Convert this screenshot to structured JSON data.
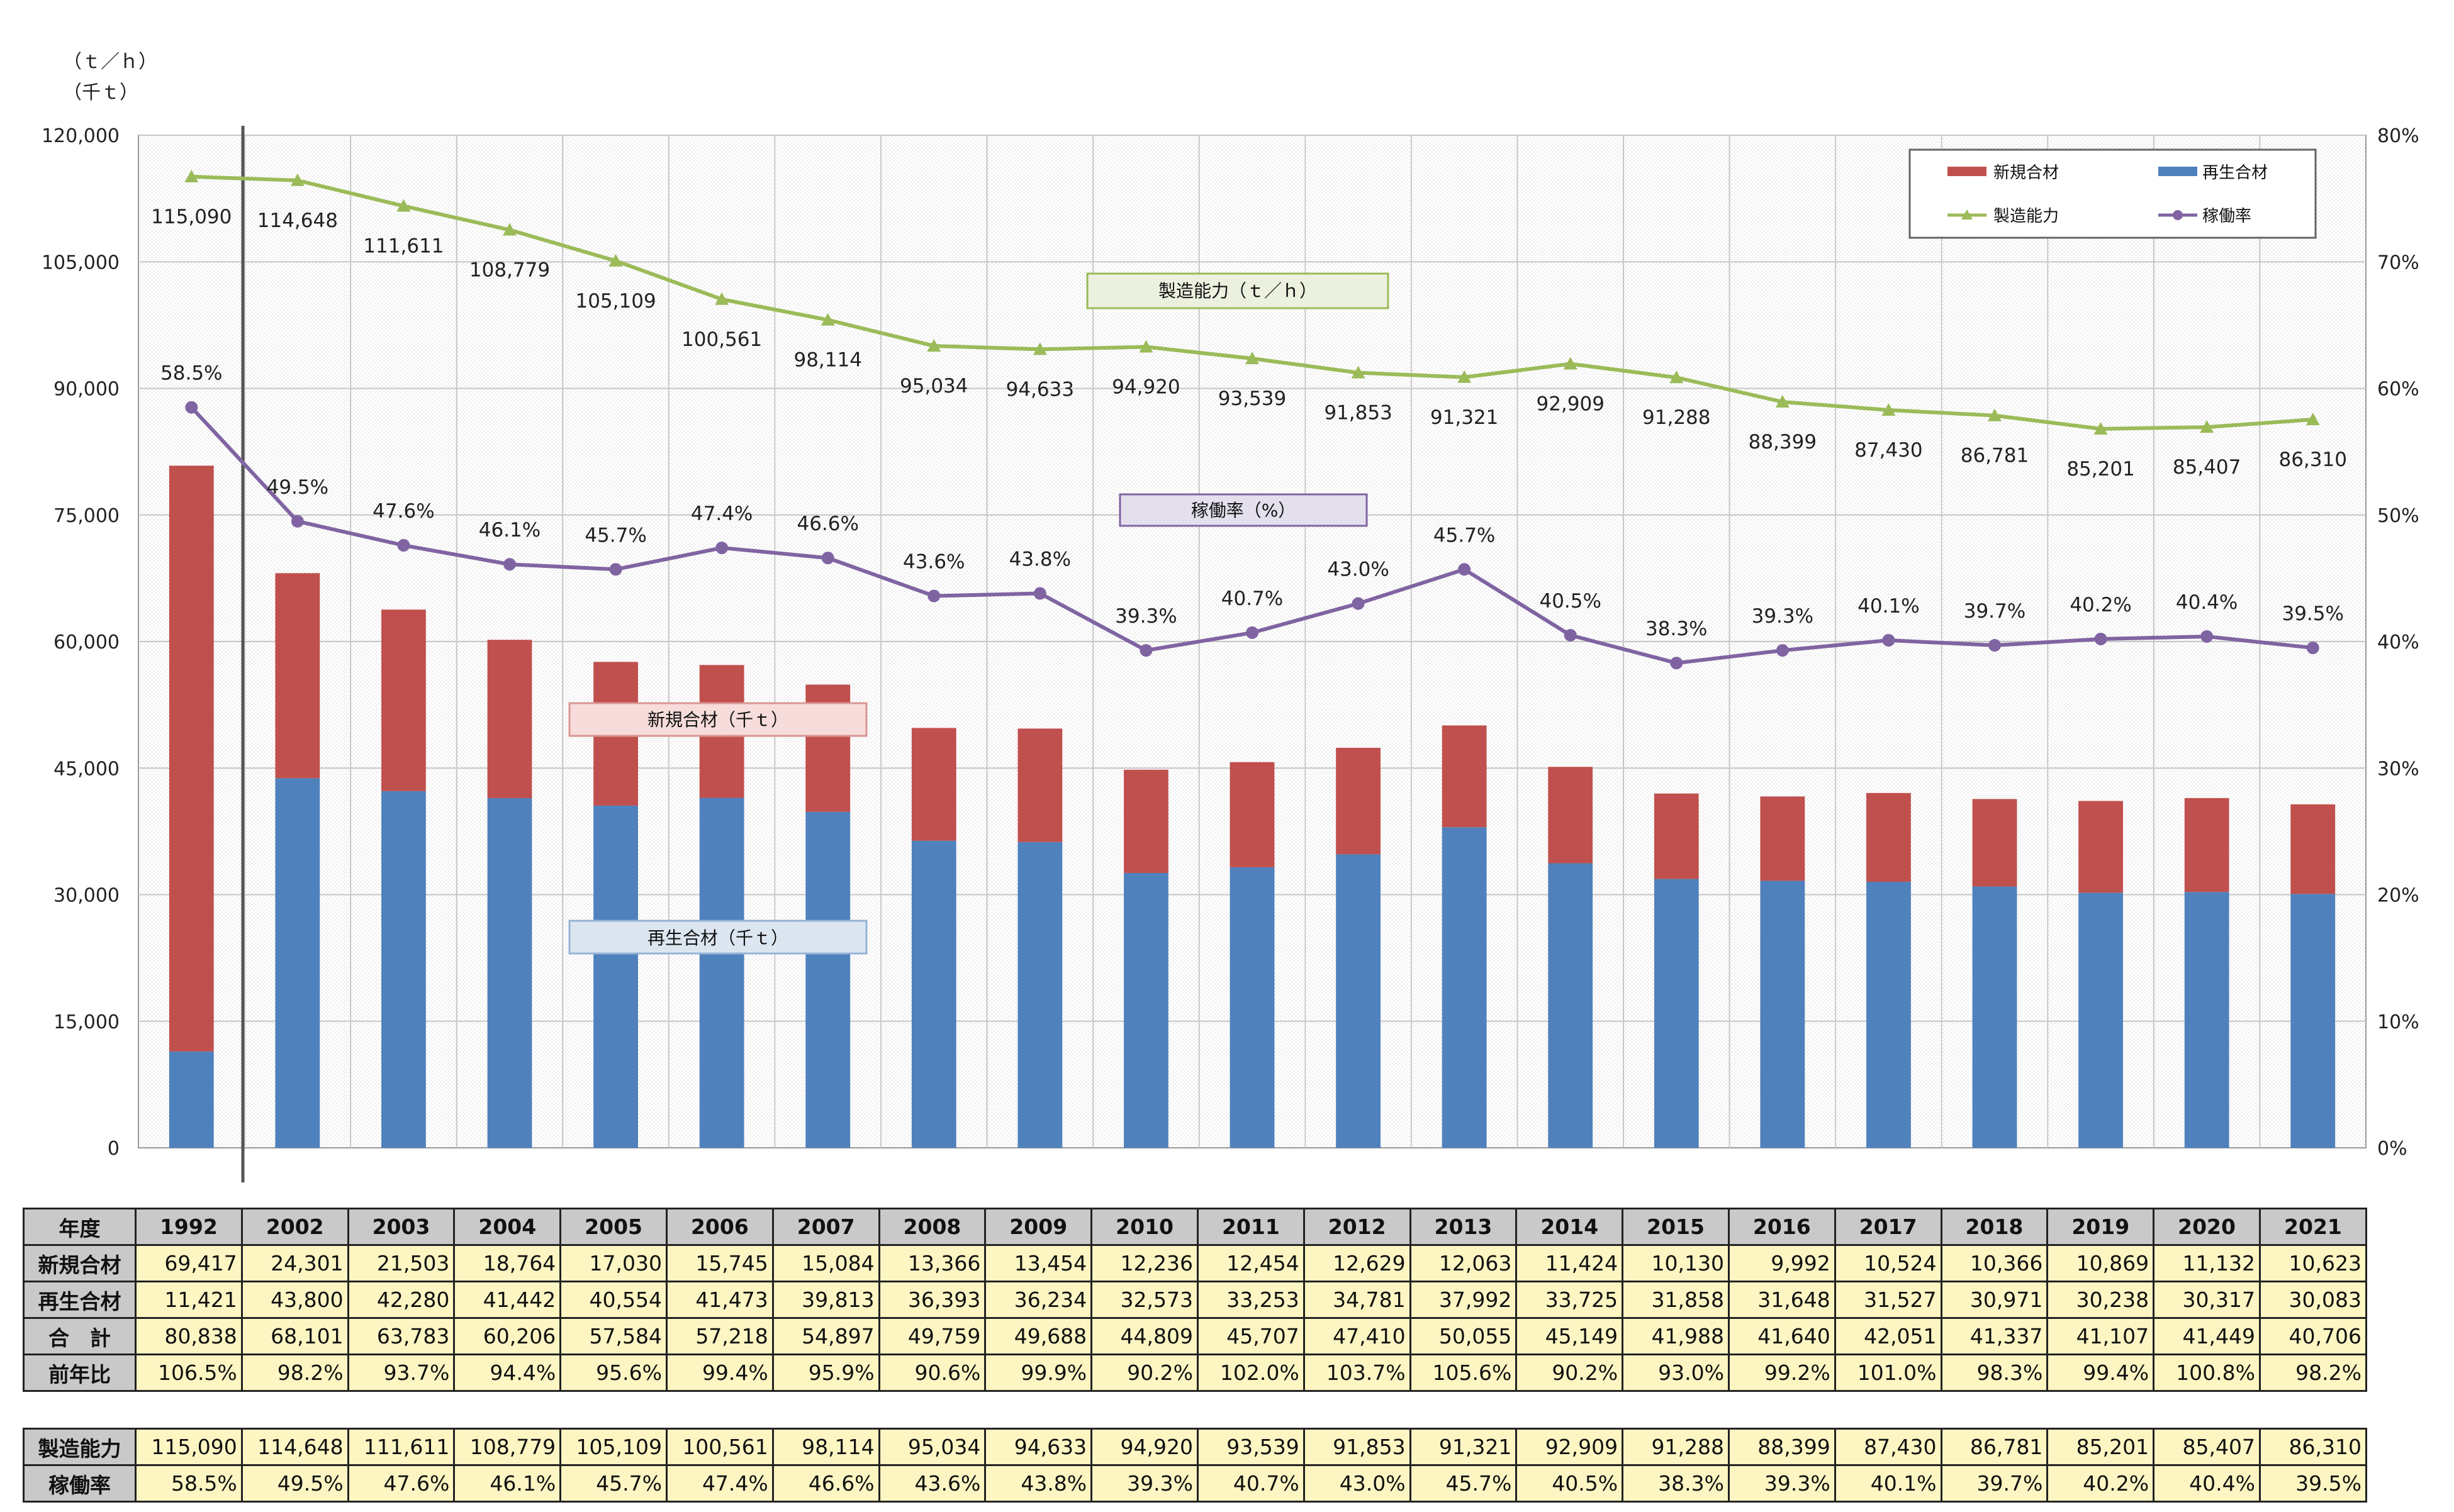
{
  "chart_data": {
    "type": "bar+line",
    "unit_labels": [
      "（ｔ／ｈ）",
      "（千ｔ）"
    ],
    "categories": [
      "1992",
      "2002",
      "2003",
      "2004",
      "2005",
      "2006",
      "2007",
      "2008",
      "2009",
      "2010",
      "2011",
      "2012",
      "2013",
      "2014",
      "2015",
      "2016",
      "2017",
      "2018",
      "2019",
      "2020",
      "2021"
    ],
    "y_left": {
      "min": 0,
      "max": 120000,
      "ticks": [
        "0",
        "15,000",
        "30,000",
        "45,000",
        "60,000",
        "75,000",
        "90,000",
        "105,000",
        "120,000"
      ]
    },
    "y_right": {
      "min": 0,
      "max": 80,
      "ticks": [
        "0%",
        "10%",
        "20%",
        "30%",
        "40%",
        "50%",
        "60%",
        "70%",
        "80%"
      ]
    },
    "series": [
      {
        "name": "新規合材",
        "type": "bar",
        "color": "#c0504d",
        "values": [
          69417,
          24301,
          21503,
          18764,
          17030,
          15745,
          15084,
          13366,
          13454,
          12236,
          12454,
          12629,
          12063,
          11424,
          10130,
          9992,
          10524,
          10366,
          10869,
          11132,
          10623
        ]
      },
      {
        "name": "再生合材",
        "type": "bar",
        "color": "#4f81bd",
        "values": [
          11421,
          43800,
          42280,
          41442,
          40554,
          41473,
          39813,
          36393,
          36234,
          32573,
          33253,
          34781,
          37992,
          33725,
          31858,
          31648,
          31527,
          30971,
          30238,
          30317,
          30083
        ]
      },
      {
        "name": "製造能力",
        "type": "line",
        "axis": "left",
        "color": "#9bbb59",
        "values": [
          115090,
          114648,
          111611,
          108779,
          105109,
          100561,
          98114,
          95034,
          94633,
          94920,
          93539,
          91853,
          91321,
          92909,
          91288,
          88399,
          87430,
          86781,
          85201,
          85407,
          86310
        ],
        "labels": [
          "115,090",
          "114,648",
          "111,611",
          "108,779",
          "105,109",
          "100,561",
          "98,114",
          "95,034",
          "94,633",
          "94,920",
          "93,539",
          "91,853",
          "91,321",
          "92,909",
          "91,288",
          "88,399",
          "87,430",
          "86,781",
          "85,201",
          "85,407",
          "86,310"
        ]
      },
      {
        "name": "稼働率",
        "type": "line",
        "axis": "right",
        "color": "#8064a2",
        "values": [
          58.5,
          49.5,
          47.6,
          46.1,
          45.7,
          47.4,
          46.6,
          43.6,
          43.8,
          39.3,
          40.7,
          43.0,
          45.7,
          40.5,
          38.3,
          39.3,
          40.1,
          39.7,
          40.2,
          40.4,
          39.5
        ],
        "labels": [
          "58.5%",
          "49.5%",
          "47.6%",
          "46.1%",
          "45.7%",
          "47.4%",
          "46.6%",
          "43.6%",
          "43.8%",
          "39.3%",
          "40.7%",
          "43.0%",
          "45.7%",
          "40.5%",
          "38.3%",
          "39.3%",
          "40.1%",
          "39.7%",
          "40.2%",
          "40.4%",
          "39.5%"
        ]
      }
    ],
    "legend": {
      "position": "top-right",
      "items": [
        {
          "label": "新規合材",
          "color": "#c0504d",
          "kind": "bar"
        },
        {
          "label": "再生合材",
          "color": "#4f81bd",
          "kind": "bar"
        },
        {
          "label": "製造能力",
          "color": "#9bbb59",
          "kind": "line"
        },
        {
          "label": "稼働率",
          "color": "#8064a2",
          "kind": "line"
        }
      ]
    },
    "annotations": {
      "capacity": "製造能力（ｔ／ｈ）",
      "rate": "稼働率（%）",
      "new_mix": "新規合材（千ｔ）",
      "recycled_mix": "再生合材（千ｔ）"
    },
    "grid": true
  },
  "table": {
    "header_label": "年度",
    "years": [
      "1992",
      "2002",
      "2003",
      "2004",
      "2005",
      "2006",
      "2007",
      "2008",
      "2009",
      "2010",
      "2011",
      "2012",
      "2013",
      "2014",
      "2015",
      "2016",
      "2017",
      "2018",
      "2019",
      "2020",
      "2021"
    ],
    "rows": [
      {
        "label": "新規合材",
        "values": [
          "69,417",
          "24,301",
          "21,503",
          "18,764",
          "17,030",
          "15,745",
          "15,084",
          "13,366",
          "13,454",
          "12,236",
          "12,454",
          "12,629",
          "12,063",
          "11,424",
          "10,130",
          "9,992",
          "10,524",
          "10,366",
          "10,869",
          "11,132",
          "10,623"
        ]
      },
      {
        "label": "再生合材",
        "values": [
          "11,421",
          "43,800",
          "42,280",
          "41,442",
          "40,554",
          "41,473",
          "39,813",
          "36,393",
          "36,234",
          "32,573",
          "33,253",
          "34,781",
          "37,992",
          "33,725",
          "31,858",
          "31,648",
          "31,527",
          "30,971",
          "30,238",
          "30,317",
          "30,083"
        ]
      },
      {
        "label": "合　計",
        "values": [
          "80,838",
          "68,101",
          "63,783",
          "60,206",
          "57,584",
          "57,218",
          "54,897",
          "49,759",
          "49,688",
          "44,809",
          "45,707",
          "47,410",
          "50,055",
          "45,149",
          "41,988",
          "41,640",
          "42,051",
          "41,337",
          "41,107",
          "41,449",
          "40,706"
        ]
      },
      {
        "label": "前年比",
        "values": [
          "106.5%",
          "98.2%",
          "93.7%",
          "94.4%",
          "95.6%",
          "99.4%",
          "95.9%",
          "90.6%",
          "99.9%",
          "90.2%",
          "102.0%",
          "103.7%",
          "105.6%",
          "90.2%",
          "93.0%",
          "99.2%",
          "101.0%",
          "98.3%",
          "99.4%",
          "100.8%",
          "98.2%"
        ]
      }
    ],
    "rows2": [
      {
        "label": "製造能力",
        "values": [
          "115,090",
          "114,648",
          "111,611",
          "108,779",
          "105,109",
          "100,561",
          "98,114",
          "95,034",
          "94,633",
          "94,920",
          "93,539",
          "91,853",
          "91,321",
          "92,909",
          "91,288",
          "88,399",
          "87,430",
          "86,781",
          "85,201",
          "85,407",
          "86,310"
        ]
      },
      {
        "label": "稼働率",
        "values": [
          "58.5%",
          "49.5%",
          "47.6%",
          "46.1%",
          "45.7%",
          "47.4%",
          "46.6%",
          "43.6%",
          "43.8%",
          "39.3%",
          "40.7%",
          "43.0%",
          "45.7%",
          "40.5%",
          "38.3%",
          "39.3%",
          "40.1%",
          "39.7%",
          "40.2%",
          "40.4%",
          "39.5%"
        ]
      }
    ]
  }
}
